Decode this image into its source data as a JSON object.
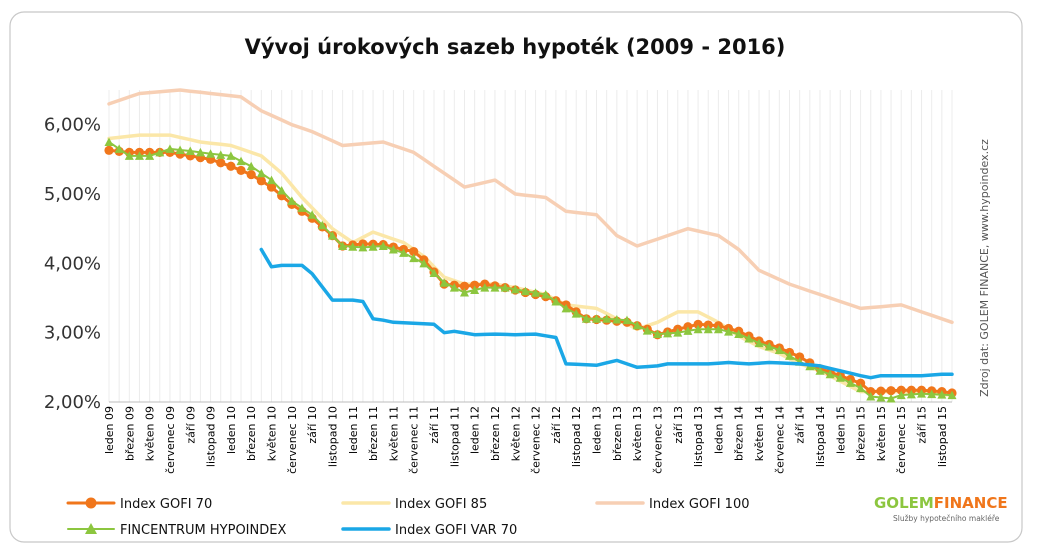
{
  "chart_data": {
    "type": "line",
    "title": "Vývoj úrokových sazeb hypoték (2009 - 2016)",
    "source_note": "Zdroj dat: GOLEM FINANCE, www.hypoindex.cz",
    "ylim": [
      2.0,
      6.5
    ],
    "yticks": [
      {
        "value": 2.0,
        "label": "2,00%"
      },
      {
        "value": 3.0,
        "label": "3,00%"
      },
      {
        "value": 4.0,
        "label": "4,00%"
      },
      {
        "value": 5.0,
        "label": "5,00%"
      },
      {
        "value": 6.0,
        "label": "6,00%"
      }
    ],
    "n_points": 84,
    "xtick_labels": [
      "leden 09",
      "březen 09",
      "květen 09",
      "červenec 09",
      "září 09",
      "listopad 09",
      "leden 10",
      "březen 10",
      "květen 10",
      "červenec 10",
      "září 10",
      "listopad 10",
      "leden 11",
      "březen 11",
      "květen 11",
      "červenec 11",
      "září 11",
      "listopad 11",
      "leden 12",
      "březen 12",
      "květen 12",
      "červenec 12",
      "září 12",
      "listopad 12",
      "leden 13",
      "březen 13",
      "květen 13",
      "červenec 13",
      "září 13",
      "listopad 13",
      "leden 14",
      "březen 14",
      "květen 14",
      "červenec 14",
      "září 14",
      "listopad 14",
      "leden 15",
      "březen 15",
      "květen 15",
      "červenec 15",
      "září 15",
      "listopad 15"
    ],
    "series": [
      {
        "key": "gofi100",
        "name": "Index GOFI 100",
        "color": "#f7cfb4",
        "width": 3.5,
        "marker": "none",
        "anchors": [
          [
            0,
            6.3
          ],
          [
            3,
            6.45
          ],
          [
            7,
            6.5
          ],
          [
            10,
            6.45
          ],
          [
            13,
            6.4
          ],
          [
            15,
            6.2
          ],
          [
            18,
            6.0
          ],
          [
            20,
            5.9
          ],
          [
            23,
            5.7
          ],
          [
            27,
            5.75
          ],
          [
            30,
            5.6
          ],
          [
            33,
            5.3
          ],
          [
            35,
            5.1
          ],
          [
            38,
            5.2
          ],
          [
            40,
            5.0
          ],
          [
            43,
            4.95
          ],
          [
            45,
            4.75
          ],
          [
            48,
            4.7
          ],
          [
            50,
            4.4
          ],
          [
            52,
            4.25
          ],
          [
            55,
            4.4
          ],
          [
            57,
            4.5
          ],
          [
            60,
            4.4
          ],
          [
            62,
            4.2
          ],
          [
            64,
            3.9
          ],
          [
            67,
            3.7
          ],
          [
            70,
            3.55
          ],
          [
            72,
            3.45
          ],
          [
            74,
            3.35
          ],
          [
            78,
            3.4
          ],
          [
            80,
            3.3
          ],
          [
            83,
            3.15
          ]
        ]
      },
      {
        "key": "gofi85",
        "name": "Index GOFI 85",
        "color": "#fbe7a8",
        "width": 3.5,
        "marker": "none",
        "anchors": [
          [
            0,
            5.8
          ],
          [
            3,
            5.85
          ],
          [
            6,
            5.85
          ],
          [
            9,
            5.75
          ],
          [
            12,
            5.7
          ],
          [
            15,
            5.55
          ],
          [
            17,
            5.3
          ],
          [
            19,
            4.95
          ],
          [
            22,
            4.5
          ],
          [
            24,
            4.3
          ],
          [
            26,
            4.45
          ],
          [
            29,
            4.3
          ],
          [
            31,
            4.1
          ],
          [
            33,
            3.8
          ],
          [
            35,
            3.7
          ],
          [
            38,
            3.7
          ],
          [
            40,
            3.65
          ],
          [
            43,
            3.55
          ],
          [
            45,
            3.4
          ],
          [
            48,
            3.35
          ],
          [
            50,
            3.2
          ],
          [
            52,
            3.05
          ],
          [
            54,
            3.15
          ],
          [
            56,
            3.3
          ],
          [
            58,
            3.3
          ],
          [
            60,
            3.15
          ],
          [
            62,
            2.95
          ],
          [
            64,
            2.8
          ],
          [
            66,
            2.7
          ],
          [
            68,
            2.55
          ],
          [
            70,
            2.45
          ],
          [
            72,
            2.3
          ],
          [
            74,
            2.15
          ],
          [
            76,
            2.15
          ],
          [
            78,
            2.15
          ],
          [
            83,
            2.1
          ]
        ]
      },
      {
        "key": "gofi70",
        "name": "Index GOFI 70",
        "color": "#f0761b",
        "width": 3,
        "marker": "circle",
        "anchors": [
          [
            0,
            5.63
          ],
          [
            2,
            5.6
          ],
          [
            4,
            5.6
          ],
          [
            6,
            5.6
          ],
          [
            8,
            5.55
          ],
          [
            10,
            5.5
          ],
          [
            12,
            5.4
          ],
          [
            14,
            5.28
          ],
          [
            16,
            5.1
          ],
          [
            18,
            4.85
          ],
          [
            20,
            4.65
          ],
          [
            22,
            4.4
          ],
          [
            23,
            4.25
          ],
          [
            25,
            4.28
          ],
          [
            27,
            4.27
          ],
          [
            29,
            4.2
          ],
          [
            30,
            4.17
          ],
          [
            31,
            4.05
          ],
          [
            33,
            3.7
          ],
          [
            35,
            3.67
          ],
          [
            37,
            3.7
          ],
          [
            39,
            3.65
          ],
          [
            41,
            3.58
          ],
          [
            43,
            3.52
          ],
          [
            45,
            3.4
          ],
          [
            47,
            3.2
          ],
          [
            49,
            3.18
          ],
          [
            51,
            3.15
          ],
          [
            53,
            3.05
          ],
          [
            54,
            2.97
          ],
          [
            56,
            3.05
          ],
          [
            58,
            3.12
          ],
          [
            60,
            3.1
          ],
          [
            62,
            3.02
          ],
          [
            64,
            2.88
          ],
          [
            66,
            2.78
          ],
          [
            68,
            2.65
          ],
          [
            70,
            2.48
          ],
          [
            72,
            2.38
          ],
          [
            74,
            2.27
          ],
          [
            75,
            2.15
          ],
          [
            78,
            2.17
          ],
          [
            80,
            2.17
          ],
          [
            82,
            2.15
          ],
          [
            83,
            2.13
          ]
        ]
      },
      {
        "key": "fincentrum",
        "name": "FINCENTRUM HYPOINDEX",
        "color": "#8cc63f",
        "width": 2,
        "marker": "triangle",
        "anchors": [
          [
            0,
            5.75
          ],
          [
            2,
            5.55
          ],
          [
            4,
            5.55
          ],
          [
            6,
            5.65
          ],
          [
            8,
            5.62
          ],
          [
            10,
            5.58
          ],
          [
            12,
            5.55
          ],
          [
            14,
            5.4
          ],
          [
            16,
            5.2
          ],
          [
            18,
            4.9
          ],
          [
            20,
            4.7
          ],
          [
            22,
            4.4
          ],
          [
            23,
            4.25
          ],
          [
            25,
            4.23
          ],
          [
            27,
            4.25
          ],
          [
            29,
            4.15
          ],
          [
            31,
            4.0
          ],
          [
            33,
            3.72
          ],
          [
            35,
            3.58
          ],
          [
            37,
            3.65
          ],
          [
            39,
            3.65
          ],
          [
            41,
            3.6
          ],
          [
            43,
            3.55
          ],
          [
            45,
            3.35
          ],
          [
            47,
            3.2
          ],
          [
            49,
            3.2
          ],
          [
            51,
            3.18
          ],
          [
            53,
            3.03
          ],
          [
            54,
            2.98
          ],
          [
            56,
            3.0
          ],
          [
            58,
            3.05
          ],
          [
            60,
            3.05
          ],
          [
            62,
            2.98
          ],
          [
            64,
            2.85
          ],
          [
            66,
            2.75
          ],
          [
            68,
            2.58
          ],
          [
            70,
            2.45
          ],
          [
            72,
            2.35
          ],
          [
            74,
            2.2
          ],
          [
            75,
            2.08
          ],
          [
            77,
            2.05
          ],
          [
            78,
            2.1
          ],
          [
            80,
            2.12
          ],
          [
            83,
            2.1
          ]
        ]
      },
      {
        "key": "var70",
        "name": "Index GOFI VAR 70",
        "color": "#1aa7e6",
        "width": 3.5,
        "marker": "none",
        "anchors": [
          [
            15,
            4.2
          ],
          [
            16,
            3.95
          ],
          [
            17,
            3.97
          ],
          [
            19,
            3.97
          ],
          [
            20,
            3.85
          ],
          [
            22,
            3.47
          ],
          [
            24,
            3.47
          ],
          [
            25,
            3.45
          ],
          [
            26,
            3.2
          ],
          [
            27,
            3.18
          ],
          [
            28,
            3.15
          ],
          [
            32,
            3.12
          ],
          [
            33,
            3.0
          ],
          [
            34,
            3.02
          ],
          [
            36,
            2.97
          ],
          [
            38,
            2.98
          ],
          [
            40,
            2.97
          ],
          [
            42,
            2.98
          ],
          [
            44,
            2.93
          ],
          [
            45,
            2.55
          ],
          [
            48,
            2.53
          ],
          [
            50,
            2.6
          ],
          [
            52,
            2.5
          ],
          [
            54,
            2.52
          ],
          [
            55,
            2.55
          ],
          [
            57,
            2.55
          ],
          [
            59,
            2.55
          ],
          [
            61,
            2.57
          ],
          [
            63,
            2.55
          ],
          [
            65,
            2.57
          ],
          [
            68,
            2.55
          ],
          [
            70,
            2.52
          ],
          [
            72,
            2.45
          ],
          [
            74,
            2.38
          ],
          [
            75,
            2.35
          ],
          [
            76,
            2.38
          ],
          [
            80,
            2.38
          ],
          [
            82,
            2.4
          ],
          [
            83,
            2.4
          ]
        ]
      }
    ],
    "legend": [
      {
        "key": "gofi70",
        "label": "Index GOFI 70"
      },
      {
        "key": "gofi85",
        "label": "Index GOFI 85"
      },
      {
        "key": "gofi100",
        "label": "Index GOFI 100"
      },
      {
        "key": "fincentrum",
        "label": "FINCENTRUM HYPOINDEX"
      },
      {
        "key": "var70",
        "label": "Index GOFI VAR 70"
      }
    ]
  },
  "brand": {
    "name_part1": "GOLEM",
    "name_part2": "FINANCE",
    "tagline": "Služby hypotečního makléře",
    "colors": {
      "part1": "#8cc63f",
      "part2": "#f0761b"
    }
  }
}
